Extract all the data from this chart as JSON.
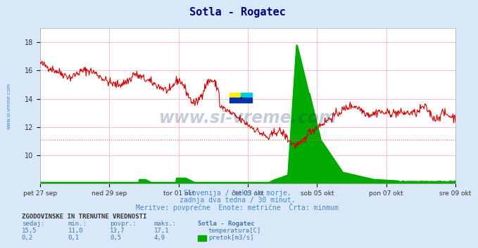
{
  "title": "Sotla - Rogatec",
  "title_color": "#000080",
  "bg_color": "#d8e8f8",
  "plot_bg_color": "#ffffff",
  "grid_color": "#ffaaaa",
  "ylabel_temp": "temperatura[C]",
  "ylabel_flow": "pretok[m3/s]",
  "temp_color": "#cc0000",
  "flow_color": "#00aa00",
  "min_line_color": "#ff5555",
  "min_line_value": 11.1,
  "x_tick_labels": [
    "pet 27 sep",
    "ned 29 sep",
    "tor 01 okt",
    "čet 03 okt",
    "sob 05 okt",
    "pon 07 okt",
    "sre 09 okt"
  ],
  "temp_ylim": [
    8.0,
    19.0
  ],
  "flow_ylim": [
    0.0,
    5.5
  ],
  "temp_yticks": [
    10,
    12,
    14,
    16,
    18
  ],
  "subtitle_line1": "Slovenija / reke in morje.",
  "subtitle_line2": "zadnja dva tedna / 30 minut.",
  "subtitle_line3": "Meritve: povprečne  Enote: metrične  Črta: minmum",
  "subtitle_color": "#4488cc",
  "table_header": "ZGODOVINSKE IN TRENUTNE VREDNOSTI",
  "table_col_headers": [
    "sedaj:",
    "min.:",
    "povpr.:",
    "maks.:",
    "Sotla - Rogatec"
  ],
  "table_temp_row": [
    "15,5",
    "11,0",
    "13,7",
    "17,1"
  ],
  "table_flow_row": [
    "0,2",
    "0,1",
    "0,5",
    "4,9"
  ],
  "watermark": "www.si-vreme.com",
  "watermark_color": "#1a3a6a",
  "left_label": "www.si-vreme.com",
  "left_label_color": "#4488cc",
  "n_points": 672
}
